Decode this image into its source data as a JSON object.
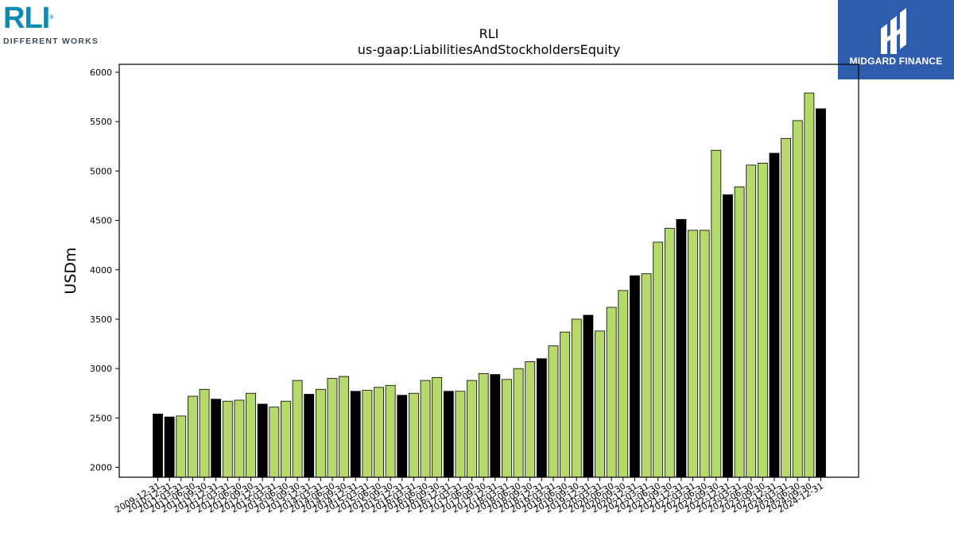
{
  "brand": {
    "company_logo_text": "RLI",
    "company_tagline": "DIFFERENT WORKS",
    "publisher_logo_text": "MIDGARD FINANCE"
  },
  "colors": {
    "bar_green": "#b5d96b",
    "bar_black": "#000000",
    "rli_blue": "#0a8bb5",
    "midgard_blue": "#2f5dae"
  },
  "chart_data": {
    "type": "bar",
    "title": "RLI",
    "subtitle": "us-gaap:LiabilitiesAndStockholdersEquity",
    "xlabel": "",
    "ylabel": "USDm",
    "ylim": [
      1900,
      6080
    ],
    "yticks": [
      2000,
      2500,
      3000,
      3500,
      4000,
      4500,
      5000,
      5500,
      6000
    ],
    "grid": false,
    "categories": [
      "2009-12-31",
      "2010-12-31",
      "2011-03-31",
      "2011-06-30",
      "2011-09-30",
      "2011-12-31",
      "2012-03-31",
      "2012-06-30",
      "2012-09-30",
      "2012-12-31",
      "2013-03-31",
      "2013-06-30",
      "2013-09-30",
      "2013-12-31",
      "2014-03-31",
      "2014-06-30",
      "2014-09-30",
      "2014-12-31",
      "2015-03-31",
      "2015-06-30",
      "2015-09-30",
      "2015-12-31",
      "2016-03-31",
      "2016-06-30",
      "2016-09-30",
      "2016-12-31",
      "2017-03-31",
      "2017-06-30",
      "2017-09-30",
      "2017-12-31",
      "2018-03-31",
      "2018-06-30",
      "2018-09-30",
      "2018-12-31",
      "2019-03-31",
      "2019-06-30",
      "2019-09-30",
      "2019-12-31",
      "2020-03-31",
      "2020-06-30",
      "2020-09-30",
      "2020-12-31",
      "2021-03-31",
      "2021-06-30",
      "2021-09-30",
      "2021-12-31",
      "2022-03-31",
      "2022-06-30",
      "2022-09-30",
      "2022-12-31",
      "2023-03-31",
      "2023-06-30",
      "2023-09-30",
      "2023-12-31",
      "2024-03-31",
      "2024-06-30",
      "2024-09-30",
      "2024-12-31"
    ],
    "values": [
      2540,
      2510,
      2520,
      2720,
      2790,
      2690,
      2670,
      2680,
      2750,
      2640,
      2610,
      2670,
      2880,
      2740,
      2790,
      2900,
      2920,
      2770,
      2780,
      2810,
      2830,
      2730,
      2750,
      2880,
      2910,
      2770,
      2770,
      2880,
      2950,
      2940,
      2890,
      3000,
      3070,
      3100,
      3230,
      3370,
      3500,
      3540,
      3380,
      3620,
      3790,
      3940,
      3960,
      4280,
      4420,
      4510,
      4400,
      4400,
      5210,
      4760,
      4840,
      5060,
      5080,
      5180,
      5330,
      5510,
      5790,
      5630
    ],
    "highlight_year_end": true
  }
}
